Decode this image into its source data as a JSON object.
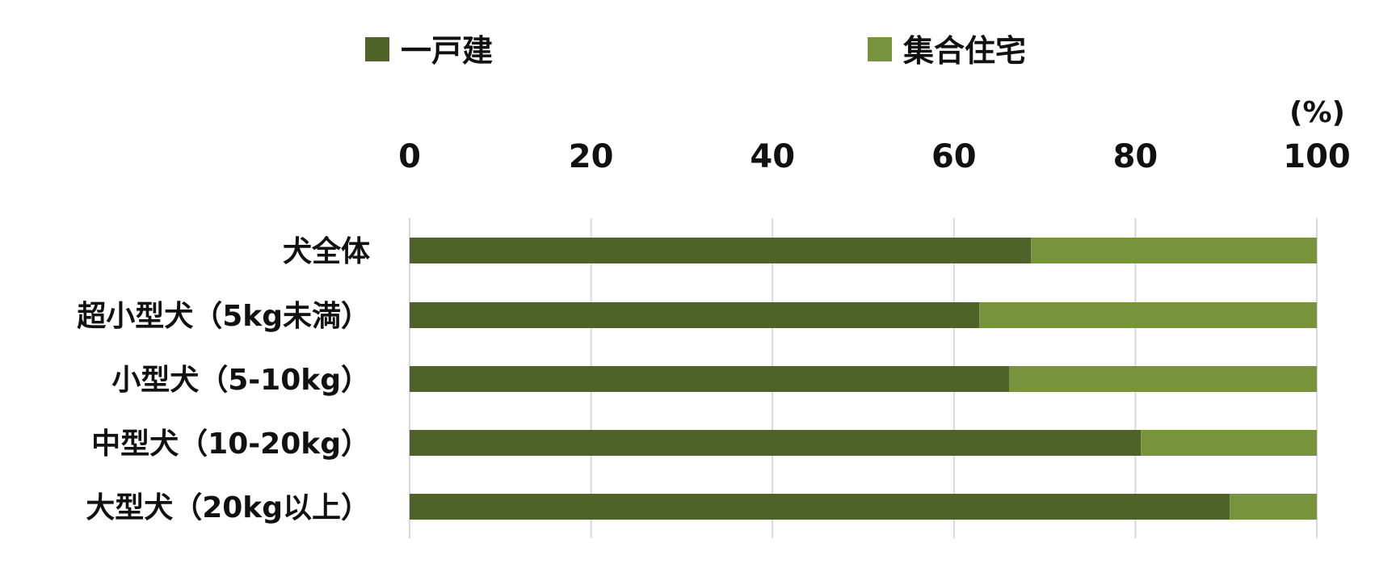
{
  "chart_data": {
    "type": "bar",
    "orientation": "horizontal",
    "stacked": true,
    "unit_label": "(%)",
    "categories": [
      "犬全体",
      "超小型犬（5kg未満）",
      "小型犬（5-10kg）",
      "中型犬（10-20kg）",
      "大型犬（20kg以上）"
    ],
    "series": [
      {
        "name": "一戸建",
        "color": "#4f6228",
        "values": [
          68.5,
          62.8,
          66.1,
          80.6,
          90.4
        ]
      },
      {
        "name": "集合住宅",
        "color": "#77933c",
        "values": [
          31.5,
          37.2,
          33.9,
          19.4,
          9.6
        ]
      }
    ],
    "xlim": [
      0,
      100
    ],
    "xticks": [
      "0",
      "20",
      "40",
      "60",
      "80",
      "100"
    ],
    "x_axis_position": "top",
    "grid": true,
    "legend_position": "top"
  }
}
